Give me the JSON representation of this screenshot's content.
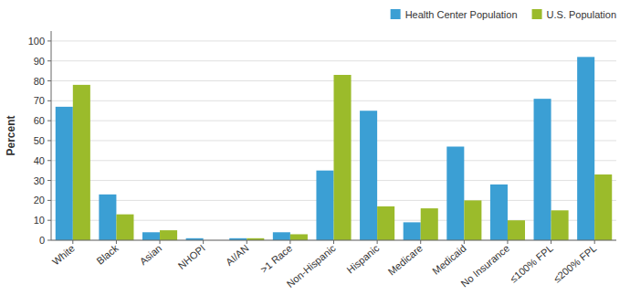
{
  "chart_data": {
    "type": "bar",
    "ylabel": "Percent",
    "categories": [
      "White",
      "Black",
      "Asian",
      "NHOPI",
      "AI/AN",
      ">1 Race",
      "Non-Hispanic",
      "Hispanic",
      "Medicare",
      "Medicaid",
      "No Insurance",
      "≤100% FPL",
      "≤200% FPL"
    ],
    "series": [
      {
        "name": "Health Center Population",
        "color": "#3B9FD4",
        "values": [
          67,
          23,
          4,
          1,
          1,
          4,
          35,
          65,
          9,
          47,
          28,
          71,
          92
        ]
      },
      {
        "name": "U.S. Population",
        "color": "#9BBB2B",
        "values": [
          78,
          13,
          5,
          0,
          1,
          3,
          83,
          17,
          16,
          20,
          10,
          15,
          33
        ]
      }
    ],
    "ylim": [
      0,
      105
    ],
    "yticks": [
      0,
      10,
      20,
      30,
      40,
      50,
      60,
      70,
      80,
      90,
      100
    ],
    "grid": true,
    "legend": "upper right"
  }
}
